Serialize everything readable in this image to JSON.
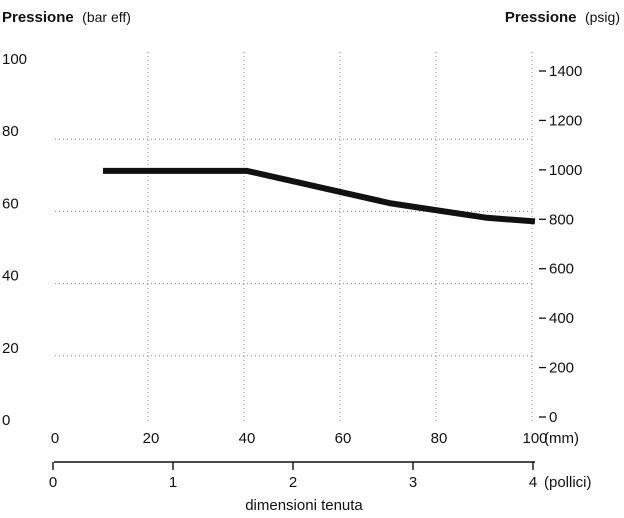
{
  "chart_data": {
    "type": "line",
    "left_axis": {
      "title_bold": "Pressione",
      "title_unit": "(bar eff)",
      "range": [
        0,
        100
      ],
      "ticks": [
        0,
        20,
        40,
        60,
        80,
        100
      ]
    },
    "right_axis": {
      "title_bold": "Pressione",
      "title_unit": "(psig)",
      "range": [
        0,
        1450
      ],
      "ticks": [
        0,
        200,
        400,
        600,
        800,
        1000,
        1200,
        1400
      ]
    },
    "x_axis_mm": {
      "range": [
        0,
        100
      ],
      "ticks": [
        0,
        20,
        40,
        60,
        80,
        100
      ],
      "unit": "(mm)"
    },
    "x_axis_inch": {
      "range": [
        0,
        4
      ],
      "ticks": [
        0,
        1,
        2,
        3,
        4
      ],
      "unit": "(pollici)",
      "label": "dimensioni tenuta"
    },
    "grid": true,
    "series": [
      {
        "x": [
          10,
          20,
          30,
          40,
          50,
          60,
          70,
          80,
          90,
          100
        ],
        "y": [
          69,
          69,
          69,
          69,
          66,
          63,
          60,
          58,
          56,
          55
        ]
      }
    ]
  }
}
